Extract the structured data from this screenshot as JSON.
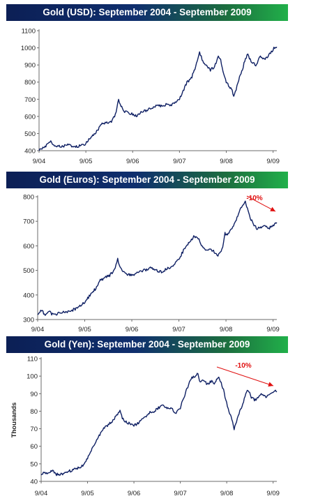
{
  "accent_colors": {
    "line": "#0e1f63",
    "annotation": "#e01010",
    "banner_dark": "#0c1f55",
    "banner_green": "#21b04a"
  },
  "chart_data": [
    {
      "type": "line",
      "title": "Gold (USD): September 2004 - September 2009",
      "xlabel": "",
      "ylabel": "",
      "x_ticks": [
        "9/04",
        "9/05",
        "9/06",
        "9/07",
        "9/08",
        "9/09"
      ],
      "xlim": [
        2004.67,
        2009.75
      ],
      "ylim": [
        400,
        1100
      ],
      "y_ticks": [
        400,
        500,
        600,
        700,
        800,
        900,
        1000,
        1100
      ],
      "grid": false,
      "series": [
        {
          "x": [
            2004.67,
            2004.75,
            2004.83,
            2004.92,
            2005.0,
            2005.1,
            2005.2,
            2005.3,
            2005.4,
            2005.5,
            2005.6,
            2005.67,
            2005.75,
            2005.83,
            2005.92,
            2006.0,
            2006.1,
            2006.2,
            2006.3,
            2006.37,
            2006.42,
            2006.5,
            2006.58,
            2006.67,
            2006.75,
            2006.83,
            2006.92,
            2007.0,
            2007.1,
            2007.2,
            2007.3,
            2007.4,
            2007.5,
            2007.58,
            2007.67,
            2007.75,
            2007.83,
            2007.92,
            2008.0,
            2008.05,
            2008.1,
            2008.17,
            2008.25,
            2008.33,
            2008.42,
            2008.5,
            2008.55,
            2008.6,
            2008.67,
            2008.72,
            2008.78,
            2008.83,
            2008.88,
            2008.92,
            2009.0,
            2009.08,
            2009.13,
            2009.2,
            2009.3,
            2009.4,
            2009.5,
            2009.58,
            2009.67,
            2009.72,
            2009.75
          ],
          "y": [
            405,
            415,
            432,
            452,
            430,
            425,
            428,
            432,
            428,
            426,
            432,
            440,
            470,
            490,
            520,
            555,
            560,
            565,
            610,
            700,
            660,
            630,
            620,
            615,
            600,
            620,
            630,
            640,
            650,
            665,
            660,
            670,
            665,
            680,
            700,
            750,
            800,
            820,
            880,
            920,
            975,
            920,
            900,
            870,
            890,
            950,
            930,
            860,
            800,
            780,
            760,
            720,
            760,
            800,
            860,
            940,
            960,
            920,
            900,
            950,
            930,
            960,
            990,
            1010,
            1005
          ]
        }
      ]
    },
    {
      "type": "line",
      "title": "Gold (Euros): September 2004 - September 2009",
      "xlabel": "",
      "ylabel": "",
      "x_ticks": [
        "9/04",
        "9/05",
        "9/06",
        "9/07",
        "9/08",
        "9/09"
      ],
      "xlim": [
        2004.67,
        2009.75
      ],
      "ylim": [
        300,
        800
      ],
      "y_ticks": [
        300,
        400,
        500,
        600,
        700,
        800
      ],
      "grid": false,
      "annotation": "-10%",
      "series": [
        {
          "x": [
            2004.67,
            2004.75,
            2004.83,
            2004.92,
            2005.0,
            2005.1,
            2005.2,
            2005.3,
            2005.4,
            2005.5,
            2005.6,
            2005.67,
            2005.75,
            2005.83,
            2005.92,
            2006.0,
            2006.1,
            2006.2,
            2006.3,
            2006.37,
            2006.42,
            2006.5,
            2006.58,
            2006.67,
            2006.75,
            2006.83,
            2006.92,
            2007.0,
            2007.1,
            2007.2,
            2007.3,
            2007.4,
            2007.5,
            2007.58,
            2007.67,
            2007.75,
            2007.83,
            2007.92,
            2008.0,
            2008.08,
            2008.13,
            2008.17,
            2008.25,
            2008.33,
            2008.42,
            2008.5,
            2008.55,
            2008.6,
            2008.65,
            2008.67,
            2008.75,
            2008.83,
            2008.92,
            2009.0,
            2009.08,
            2009.17,
            2009.25,
            2009.33,
            2009.42,
            2009.5,
            2009.58,
            2009.67,
            2009.72,
            2009.75
          ],
          "y": [
            325,
            335,
            322,
            330,
            320,
            325,
            328,
            332,
            338,
            345,
            360,
            372,
            390,
            410,
            430,
            460,
            470,
            480,
            500,
            545,
            510,
            495,
            485,
            480,
            485,
            495,
            500,
            505,
            510,
            500,
            495,
            505,
            515,
            525,
            545,
            575,
            600,
            620,
            640,
            630,
            610,
            600,
            580,
            590,
            575,
            560,
            570,
            590,
            650,
            640,
            660,
            680,
            720,
            760,
            780,
            720,
            690,
            670,
            675,
            680,
            670,
            685,
            690,
            695
          ]
        }
      ]
    },
    {
      "type": "line",
      "title": "Gold (Yen): September 2004 - September 2009",
      "xlabel": "",
      "ylabel": "Thousands",
      "x_ticks": [
        "9/04",
        "9/05",
        "9/06",
        "9/07",
        "9/08",
        "9/09"
      ],
      "xlim": [
        2004.67,
        2009.75
      ],
      "ylim": [
        40,
        110
      ],
      "y_ticks": [
        40,
        50,
        60,
        70,
        80,
        90,
        100,
        110
      ],
      "grid": false,
      "annotation": "-10%",
      "series": [
        {
          "x": [
            2004.67,
            2004.75,
            2004.83,
            2004.92,
            2005.0,
            2005.1,
            2005.2,
            2005.3,
            2005.4,
            2005.5,
            2005.6,
            2005.67,
            2005.75,
            2005.83,
            2005.92,
            2006.0,
            2006.1,
            2006.2,
            2006.3,
            2006.37,
            2006.42,
            2006.5,
            2006.58,
            2006.67,
            2006.75,
            2006.83,
            2006.92,
            2007.0,
            2007.1,
            2007.2,
            2007.3,
            2007.4,
            2007.5,
            2007.58,
            2007.67,
            2007.75,
            2007.83,
            2007.92,
            2008.0,
            2008.05,
            2008.1,
            2008.17,
            2008.25,
            2008.33,
            2008.42,
            2008.5,
            2008.55,
            2008.6,
            2008.65,
            2008.72,
            2008.78,
            2008.83,
            2008.88,
            2008.92,
            2009.0,
            2009.08,
            2009.13,
            2009.2,
            2009.3,
            2009.4,
            2009.5,
            2009.58,
            2009.67,
            2009.72,
            2009.75
          ],
          "y": [
            44,
            45,
            45,
            46,
            44,
            44,
            45,
            46,
            47,
            48,
            50,
            53,
            58,
            62,
            66,
            70,
            72,
            74,
            78,
            80,
            76,
            74,
            73,
            72,
            73,
            75,
            77,
            79,
            80,
            82,
            83,
            82,
            81,
            79,
            82,
            88,
            94,
            99,
            100,
            102,
            96,
            98,
            95,
            97,
            96,
            100,
            96,
            92,
            86,
            80,
            75,
            70,
            74,
            78,
            83,
            90,
            92,
            88,
            86,
            90,
            88,
            90,
            91,
            92,
            91
          ]
        }
      ]
    }
  ]
}
